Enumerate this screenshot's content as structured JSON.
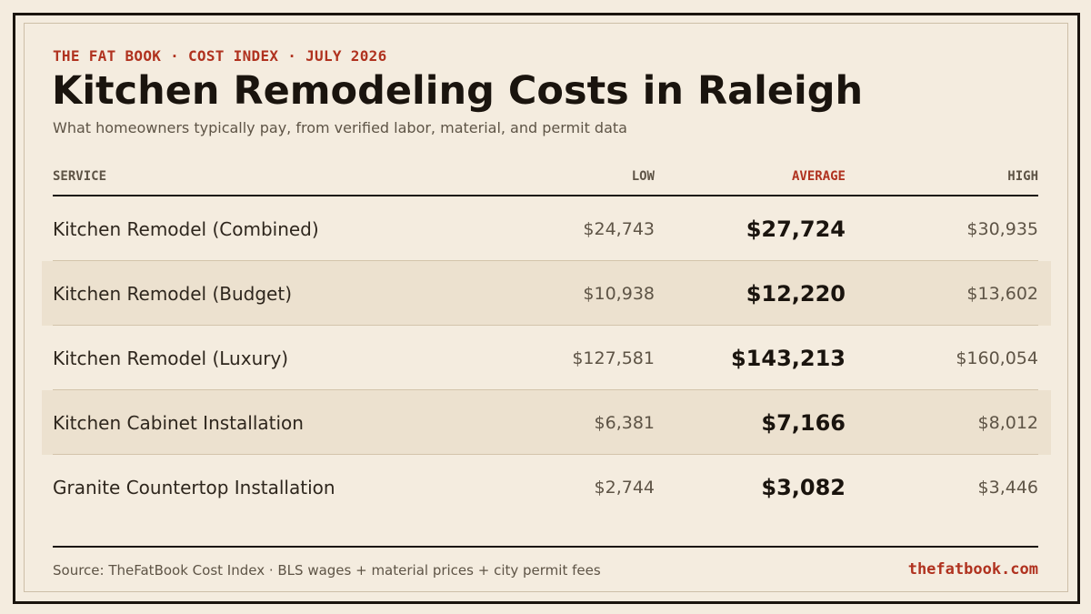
{
  "kicker": "THE FAT BOOK · COST INDEX · JULY 2026",
  "title": "Kitchen Remodeling Costs in Raleigh",
  "subtitle": "What homeowners typically pay, from verified labor, material, and permit data",
  "table": {
    "headers": {
      "service": "SERVICE",
      "low": "LOW",
      "average": "AVERAGE",
      "high": "HIGH"
    },
    "rows": [
      {
        "service": "Kitchen Remodel (Combined)",
        "low": "$24,743",
        "average": "$27,724",
        "high": "$30,935"
      },
      {
        "service": "Kitchen Remodel (Budget)",
        "low": "$10,938",
        "average": "$12,220",
        "high": "$13,602"
      },
      {
        "service": "Kitchen Remodel (Luxury)",
        "low": "$127,581",
        "average": "$143,213",
        "high": "$160,054"
      },
      {
        "service": "Kitchen Cabinet Installation",
        "low": "$6,381",
        "average": "$7,166",
        "high": "$8,012"
      },
      {
        "service": "Granite Countertop Installation",
        "low": "$2,744",
        "average": "$3,082",
        "high": "$3,446"
      }
    ]
  },
  "footer": {
    "source": "Source: TheFatBook Cost Index · BLS wages + material prices + city permit fees",
    "site": "thefatbook.com"
  },
  "colors": {
    "background": "#f4ecdf",
    "accent": "#b0321f",
    "ink": "#1a140e",
    "shaded_row": "#ece1cf"
  }
}
